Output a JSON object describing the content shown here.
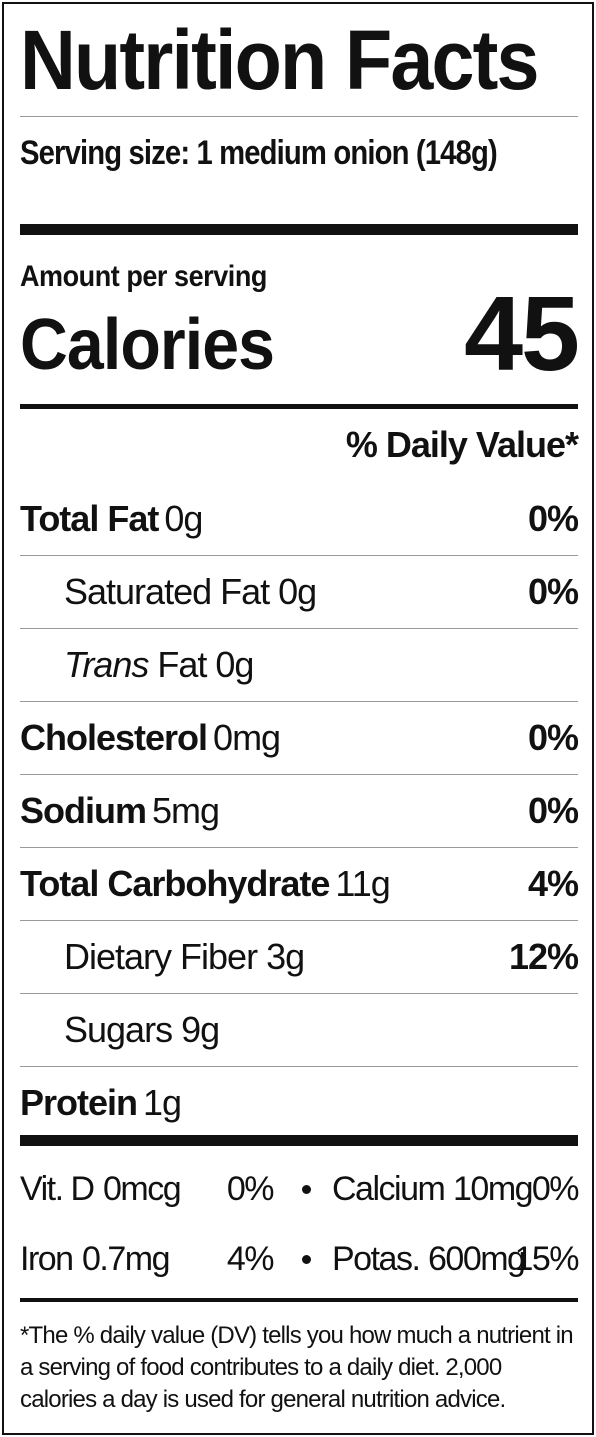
{
  "title": "Nutrition Facts",
  "serving_size": "Serving size: 1 medium onion (148g)",
  "amount_per_serving": "Amount per serving",
  "calories_label": "Calories",
  "calories": 45,
  "daily_value_header": "% Daily Value*",
  "nutrients": [
    {
      "name": "Total Fat",
      "amount": "0g",
      "dv": "0%",
      "sub": [
        {
          "name": "Saturated Fat",
          "amount": "0g",
          "dv": "0%"
        },
        {
          "prefix": "Trans",
          "name": "Fat",
          "amount": "0g"
        }
      ]
    },
    {
      "name": "Cholesterol",
      "amount": "0mg",
      "dv": "0%"
    },
    {
      "name": "Sodium",
      "amount": "5mg",
      "dv": "0%"
    },
    {
      "name": "Total Carbohydrate",
      "amount": "11g",
      "dv": "4%",
      "sub": [
        {
          "name": "Dietary Fiber",
          "amount": "3g",
          "dv": "12%"
        },
        {
          "name": "Sugars",
          "amount": "9g"
        }
      ]
    },
    {
      "name": "Protein",
      "amount": "1g"
    }
  ],
  "vitamins": [
    [
      {
        "name": "Vit. D",
        "amount": "0mcg",
        "dv": "0%"
      },
      {
        "name": "Calcium",
        "amount": "10mg",
        "dv": "0%"
      }
    ],
    [
      {
        "name": "Iron",
        "amount": "0.7mg",
        "dv": "4%"
      },
      {
        "name": "Potas.",
        "amount": "600mg",
        "dv": "15%"
      }
    ]
  ],
  "footnote": "*The % daily value (DV) tells you how much a nutrient in a serving of food contributes to a daily diet. 2,000 calories a day is used for general nutrition advice."
}
